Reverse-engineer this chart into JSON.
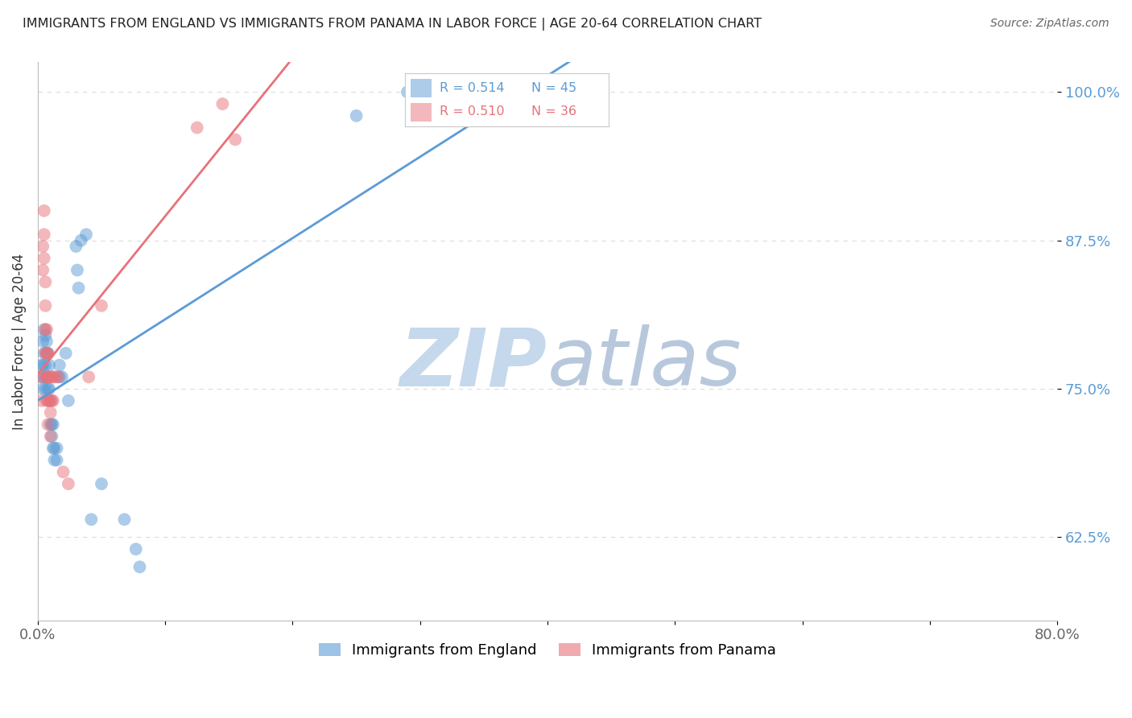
{
  "title": "IMMIGRANTS FROM ENGLAND VS IMMIGRANTS FROM PANAMA IN LABOR FORCE | AGE 20-64 CORRELATION CHART",
  "source": "Source: ZipAtlas.com",
  "ylabel": "In Labor Force | Age 20-64",
  "xlim": [
    0.0,
    0.8
  ],
  "ylim": [
    0.555,
    1.025
  ],
  "yticks": [
    0.625,
    0.75,
    0.875,
    1.0
  ],
  "yticklabels": [
    "62.5%",
    "75.0%",
    "87.5%",
    "100.0%"
  ],
  "england_color": "#5b9bd5",
  "panama_color": "#e8727a",
  "england_R": 0.514,
  "england_N": 45,
  "panama_R": 0.51,
  "panama_N": 36,
  "england_x": [
    0.003,
    0.003,
    0.004,
    0.004,
    0.004,
    0.005,
    0.005,
    0.005,
    0.006,
    0.006,
    0.006,
    0.007,
    0.007,
    0.007,
    0.008,
    0.008,
    0.009,
    0.009,
    0.01,
    0.01,
    0.011,
    0.011,
    0.012,
    0.012,
    0.013,
    0.013,
    0.015,
    0.015,
    0.017,
    0.017,
    0.019,
    0.022,
    0.024,
    0.03,
    0.031,
    0.032,
    0.034,
    0.038,
    0.042,
    0.05,
    0.068,
    0.077,
    0.08,
    0.25,
    0.29
  ],
  "england_y": [
    0.76,
    0.77,
    0.75,
    0.77,
    0.79,
    0.76,
    0.78,
    0.8,
    0.75,
    0.77,
    0.795,
    0.76,
    0.78,
    0.79,
    0.75,
    0.78,
    0.75,
    0.77,
    0.72,
    0.74,
    0.71,
    0.72,
    0.7,
    0.72,
    0.69,
    0.7,
    0.69,
    0.7,
    0.77,
    0.76,
    0.76,
    0.78,
    0.74,
    0.87,
    0.85,
    0.835,
    0.875,
    0.88,
    0.64,
    0.67,
    0.64,
    0.615,
    0.6,
    0.98,
    1.0
  ],
  "panama_x": [
    0.003,
    0.003,
    0.004,
    0.004,
    0.005,
    0.005,
    0.005,
    0.006,
    0.006,
    0.006,
    0.006,
    0.007,
    0.007,
    0.007,
    0.007,
    0.008,
    0.008,
    0.008,
    0.008,
    0.009,
    0.009,
    0.01,
    0.01,
    0.011,
    0.011,
    0.012,
    0.012,
    0.014,
    0.016,
    0.02,
    0.024,
    0.04,
    0.05,
    0.125,
    0.145,
    0.155
  ],
  "panama_y": [
    0.76,
    0.74,
    0.87,
    0.85,
    0.9,
    0.88,
    0.86,
    0.84,
    0.82,
    0.8,
    0.78,
    0.8,
    0.78,
    0.76,
    0.74,
    0.78,
    0.76,
    0.74,
    0.72,
    0.76,
    0.74,
    0.73,
    0.71,
    0.76,
    0.74,
    0.76,
    0.74,
    0.76,
    0.76,
    0.68,
    0.67,
    0.76,
    0.82,
    0.97,
    0.99,
    0.96
  ],
  "background_color": "#ffffff",
  "grid_color": "#cccccc",
  "title_color": "#222222",
  "watermark_zip_color": "#c5d8ec",
  "watermark_atlas_color": "#b8c8dc"
}
